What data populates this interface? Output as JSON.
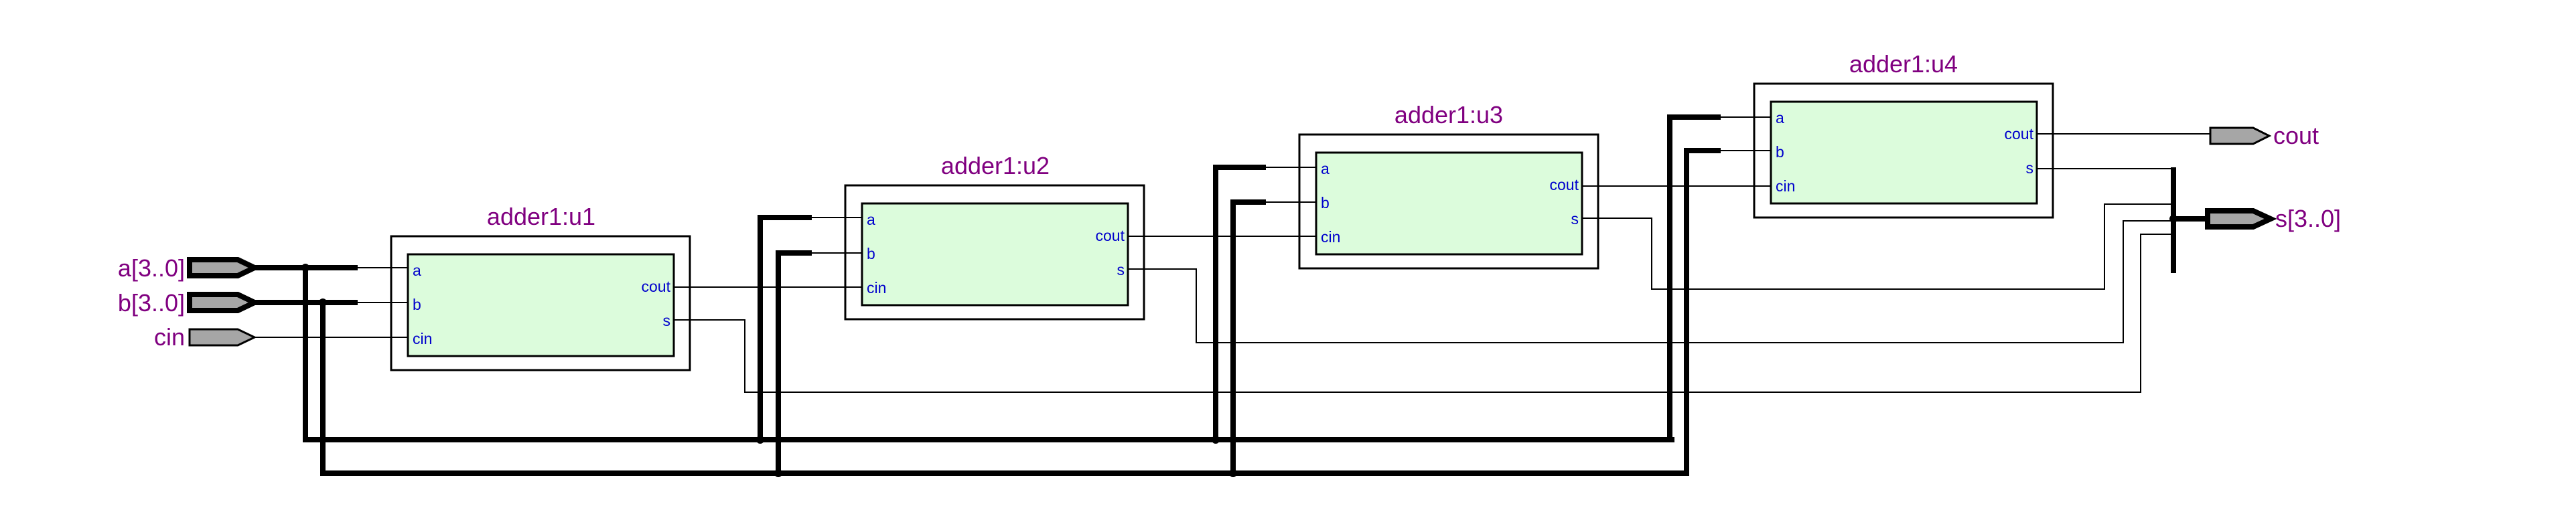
{
  "inputs": [
    {
      "label": "a[3..0]",
      "kind": "bus"
    },
    {
      "label": "b[3..0]",
      "kind": "bus"
    },
    {
      "label": "cin",
      "kind": "single"
    }
  ],
  "outputs": [
    {
      "label": "cout",
      "kind": "single"
    },
    {
      "label": "s[3..0]",
      "kind": "bus"
    }
  ],
  "instances": [
    {
      "title": "adder1:u1",
      "pins": {
        "a": "a",
        "b": "b",
        "cin": "cin",
        "cout": "cout",
        "s": "s"
      }
    },
    {
      "title": "adder1:u2",
      "pins": {
        "a": "a",
        "b": "b",
        "cin": "cin",
        "cout": "cout",
        "s": "s"
      }
    },
    {
      "title": "adder1:u3",
      "pins": {
        "a": "a",
        "b": "b",
        "cin": "cin",
        "cout": "cout",
        "s": "s"
      }
    },
    {
      "title": "adder1:u4",
      "pins": {
        "a": "a",
        "b": "b",
        "cin": "cin",
        "cout": "cout",
        "s": "s"
      }
    }
  ],
  "colors": {
    "label": "#800080",
    "pin_label": "#0000cc",
    "block_fill": "#dcfcdc",
    "port_fill": "#a6a6a6"
  }
}
